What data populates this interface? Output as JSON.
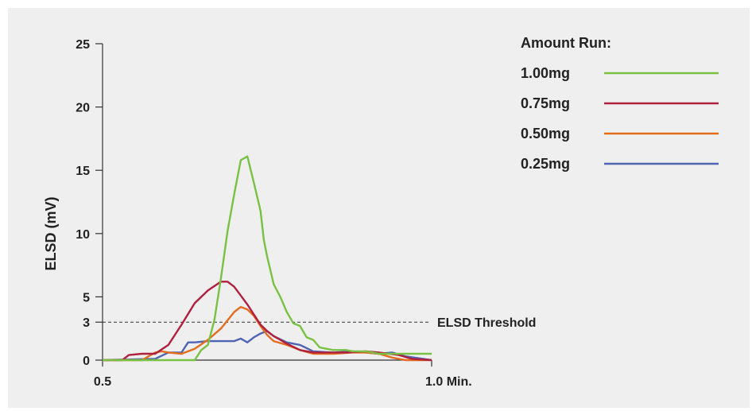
{
  "chart_data": {
    "type": "line",
    "ylabel": "ELSD (mV)",
    "xlabel": "",
    "xlim": [
      0.5,
      1.0
    ],
    "ylim": [
      0,
      25
    ],
    "grid": false,
    "x_ticks": [
      {
        "value": 0.5,
        "label": "0.5"
      },
      {
        "value": 1.0,
        "label": "1.0 Min."
      }
    ],
    "y_ticks": [
      {
        "value": 0,
        "label": "0"
      },
      {
        "value": 3,
        "label": "3"
      },
      {
        "value": 5,
        "label": "5"
      },
      {
        "value": 10,
        "label": "10"
      },
      {
        "value": 15,
        "label": "15"
      },
      {
        "value": 20,
        "label": "20"
      },
      {
        "value": 25,
        "label": "25"
      }
    ],
    "threshold": {
      "value": 3,
      "label": "ELSD Threshold"
    },
    "legend": {
      "title": "Amount Run:",
      "position": "top-right"
    },
    "series": [
      {
        "name": "1.00mg",
        "color": "#79c143",
        "x": [
          0.5,
          0.54,
          0.6,
          0.64,
          0.65,
          0.66,
          0.67,
          0.68,
          0.69,
          0.7,
          0.71,
          0.72,
          0.73,
          0.74,
          0.745,
          0.75,
          0.76,
          0.77,
          0.78,
          0.79,
          0.8,
          0.81,
          0.82,
          0.83,
          0.84,
          0.85,
          0.86,
          0.87,
          0.88,
          0.89,
          0.9,
          0.91,
          0.92,
          0.93,
          1.0
        ],
        "y": [
          0,
          0,
          0,
          0,
          0.8,
          1.2,
          3.2,
          6.5,
          10.2,
          13.1,
          15.8,
          16.1,
          14.0,
          11.8,
          9.5,
          8.2,
          6.0,
          5.0,
          3.8,
          2.9,
          2.7,
          1.8,
          1.6,
          1.0,
          0.9,
          0.8,
          0.8,
          0.8,
          0.7,
          0.7,
          0.7,
          0.6,
          0.5,
          0.5,
          0.5
        ]
      },
      {
        "name": "0.75mg",
        "color": "#b01f3c",
        "x": [
          0.5,
          0.53,
          0.54,
          0.56,
          0.58,
          0.6,
          0.62,
          0.64,
          0.66,
          0.68,
          0.69,
          0.7,
          0.71,
          0.72,
          0.73,
          0.74,
          0.75,
          0.76,
          0.77,
          0.78,
          0.8,
          0.82,
          0.85,
          0.87,
          0.9,
          0.92,
          0.95,
          0.97,
          1.0
        ],
        "y": [
          0,
          0,
          0.4,
          0.5,
          0.5,
          1.2,
          2.8,
          4.5,
          5.5,
          6.2,
          6.2,
          5.8,
          5.1,
          4.4,
          3.6,
          2.8,
          2.3,
          1.9,
          1.6,
          1.3,
          0.8,
          0.6,
          0.6,
          0.6,
          0.7,
          0.6,
          0.4,
          0.1,
          0
        ]
      },
      {
        "name": "0.50mg",
        "color": "#e36c1e",
        "x": [
          0.5,
          0.56,
          0.58,
          0.59,
          0.6,
          0.62,
          0.64,
          0.66,
          0.68,
          0.7,
          0.71,
          0.72,
          0.73,
          0.74,
          0.75,
          0.76,
          0.78,
          0.8,
          0.82,
          0.85,
          0.88,
          0.9,
          0.92,
          0.94,
          0.96,
          1.0
        ],
        "y": [
          0,
          0,
          0.6,
          0.7,
          0.6,
          0.5,
          0.9,
          1.6,
          2.5,
          3.8,
          4.2,
          4.0,
          3.5,
          2.7,
          2.0,
          1.5,
          1.2,
          0.8,
          0.5,
          0.5,
          0.6,
          0.6,
          0.5,
          0.2,
          0,
          0
        ]
      },
      {
        "name": "0.25mg",
        "color": "#4f65b2",
        "x": [
          0.5,
          0.58,
          0.6,
          0.62,
          0.63,
          0.64,
          0.66,
          0.68,
          0.7,
          0.71,
          0.72,
          0.73,
          0.74,
          0.75,
          0.76,
          0.78,
          0.8,
          0.82,
          0.85,
          0.88,
          0.9,
          0.92,
          0.94,
          0.96,
          1.0
        ],
        "y": [
          0,
          0.1,
          0.6,
          0.6,
          1.4,
          1.4,
          1.5,
          1.5,
          1.5,
          1.7,
          1.4,
          1.8,
          2.1,
          2.3,
          1.9,
          1.4,
          1.2,
          0.7,
          0.6,
          0.7,
          0.6,
          0.5,
          0.6,
          0.3,
          0
        ]
      }
    ]
  }
}
